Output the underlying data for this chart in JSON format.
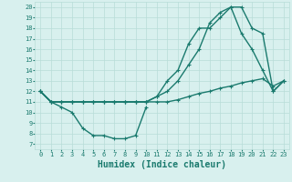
{
  "lines": [
    {
      "x": [
        0,
        1,
        2,
        3,
        4,
        5,
        6,
        7,
        8,
        9,
        10
      ],
      "y": [
        12,
        11,
        10.5,
        10,
        8.5,
        7.8,
        7.8,
        7.5,
        7.5,
        7.8,
        10.5
      ],
      "color": "#1a7a6e",
      "lw": 1.0,
      "marker": "+"
    },
    {
      "x": [
        0,
        1,
        2,
        3,
        4,
        5,
        6,
        7,
        8,
        9,
        10,
        11,
        12,
        13,
        14,
        15,
        16,
        17,
        18,
        19,
        20,
        21,
        22,
        23
      ],
      "y": [
        12,
        11,
        11,
        11,
        11,
        11,
        11,
        11,
        11,
        11,
        11,
        11,
        11,
        11.2,
        11.5,
        11.8,
        12.0,
        12.3,
        12.5,
        12.8,
        13.0,
        13.2,
        12.5,
        13
      ],
      "color": "#1a7a6e",
      "lw": 1.0,
      "marker": "+"
    },
    {
      "x": [
        0,
        1,
        2,
        3,
        4,
        5,
        6,
        7,
        8,
        9,
        10,
        11,
        12,
        13,
        14,
        15,
        16,
        17,
        18,
        19,
        20,
        21,
        22,
        23
      ],
      "y": [
        12,
        11,
        11,
        11,
        11,
        11,
        11,
        11,
        11,
        11,
        11,
        11.5,
        13,
        14,
        16.5,
        18.0,
        18.0,
        19.0,
        20.0,
        20.0,
        18.0,
        17.5,
        12,
        13
      ],
      "color": "#1a7a6e",
      "lw": 1.0,
      "marker": "+"
    },
    {
      "x": [
        0,
        1,
        2,
        3,
        4,
        5,
        6,
        7,
        8,
        9,
        10,
        11,
        12,
        13,
        14,
        15,
        16,
        17,
        18,
        19,
        20,
        21,
        22,
        23
      ],
      "y": [
        12,
        11,
        11,
        11,
        11,
        11,
        11,
        11,
        11,
        11,
        11,
        11.5,
        12,
        13,
        14.5,
        16.0,
        18.5,
        19.5,
        20.0,
        17.5,
        16.0,
        14.0,
        12,
        13
      ],
      "color": "#1a7a6e",
      "lw": 1.0,
      "marker": "+"
    }
  ],
  "xlim": [
    -0.5,
    23.5
  ],
  "ylim": [
    6.5,
    20.5
  ],
  "xticks": [
    0,
    1,
    2,
    3,
    4,
    5,
    6,
    7,
    8,
    9,
    10,
    11,
    12,
    13,
    14,
    15,
    16,
    17,
    18,
    19,
    20,
    21,
    22,
    23
  ],
  "yticks": [
    7,
    8,
    9,
    10,
    11,
    12,
    13,
    14,
    15,
    16,
    17,
    18,
    19,
    20
  ],
  "xlabel": "Humidex (Indice chaleur)",
  "bg_color": "#d8f0ee",
  "grid_color": "#b8dcd8",
  "line_color": "#1a7a6e",
  "tick_fontsize": 5.0,
  "xlabel_fontsize": 7.0
}
